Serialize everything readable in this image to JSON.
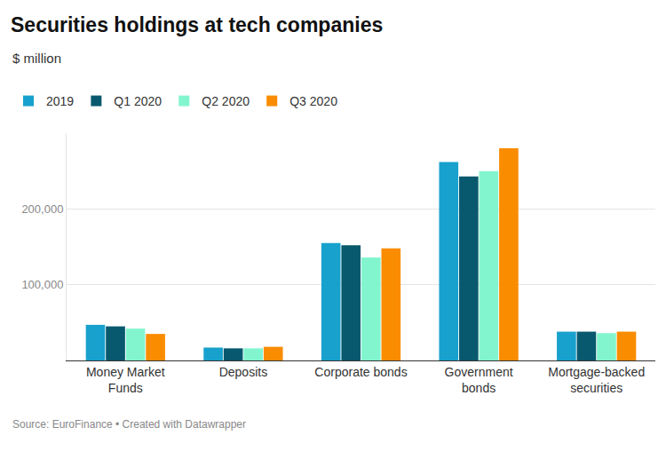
{
  "chart_data": {
    "type": "bar",
    "title": "Securities holdings at tech companies",
    "subtitle": "$ million",
    "source": "Source: EuroFinance • Created with Datawrapper",
    "categories": [
      "Money Market Funds",
      "Deposits",
      "Corporate bonds",
      "Government bonds",
      "Mortgage-backed securities"
    ],
    "series": [
      {
        "name": "2019",
        "color": "#18a1cd",
        "values": [
          47000,
          17000,
          155000,
          262000,
          38000
        ]
      },
      {
        "name": "Q1 2020",
        "color": "#09596e",
        "values": [
          45000,
          16000,
          152000,
          243000,
          38000
        ]
      },
      {
        "name": "Q2 2020",
        "color": "#82f5cf",
        "values": [
          42000,
          16000,
          136000,
          250000,
          36000
        ]
      },
      {
        "name": "Q3 2020",
        "color": "#fa8c00",
        "values": [
          35000,
          18000,
          148000,
          280000,
          38000
        ]
      }
    ],
    "ylim": [
      0,
      300000
    ],
    "yticks": [
      {
        "value": 100000,
        "label": "100,000"
      },
      {
        "value": 200000,
        "label": "200,000"
      }
    ],
    "grid": true,
    "legend": "top-left"
  }
}
